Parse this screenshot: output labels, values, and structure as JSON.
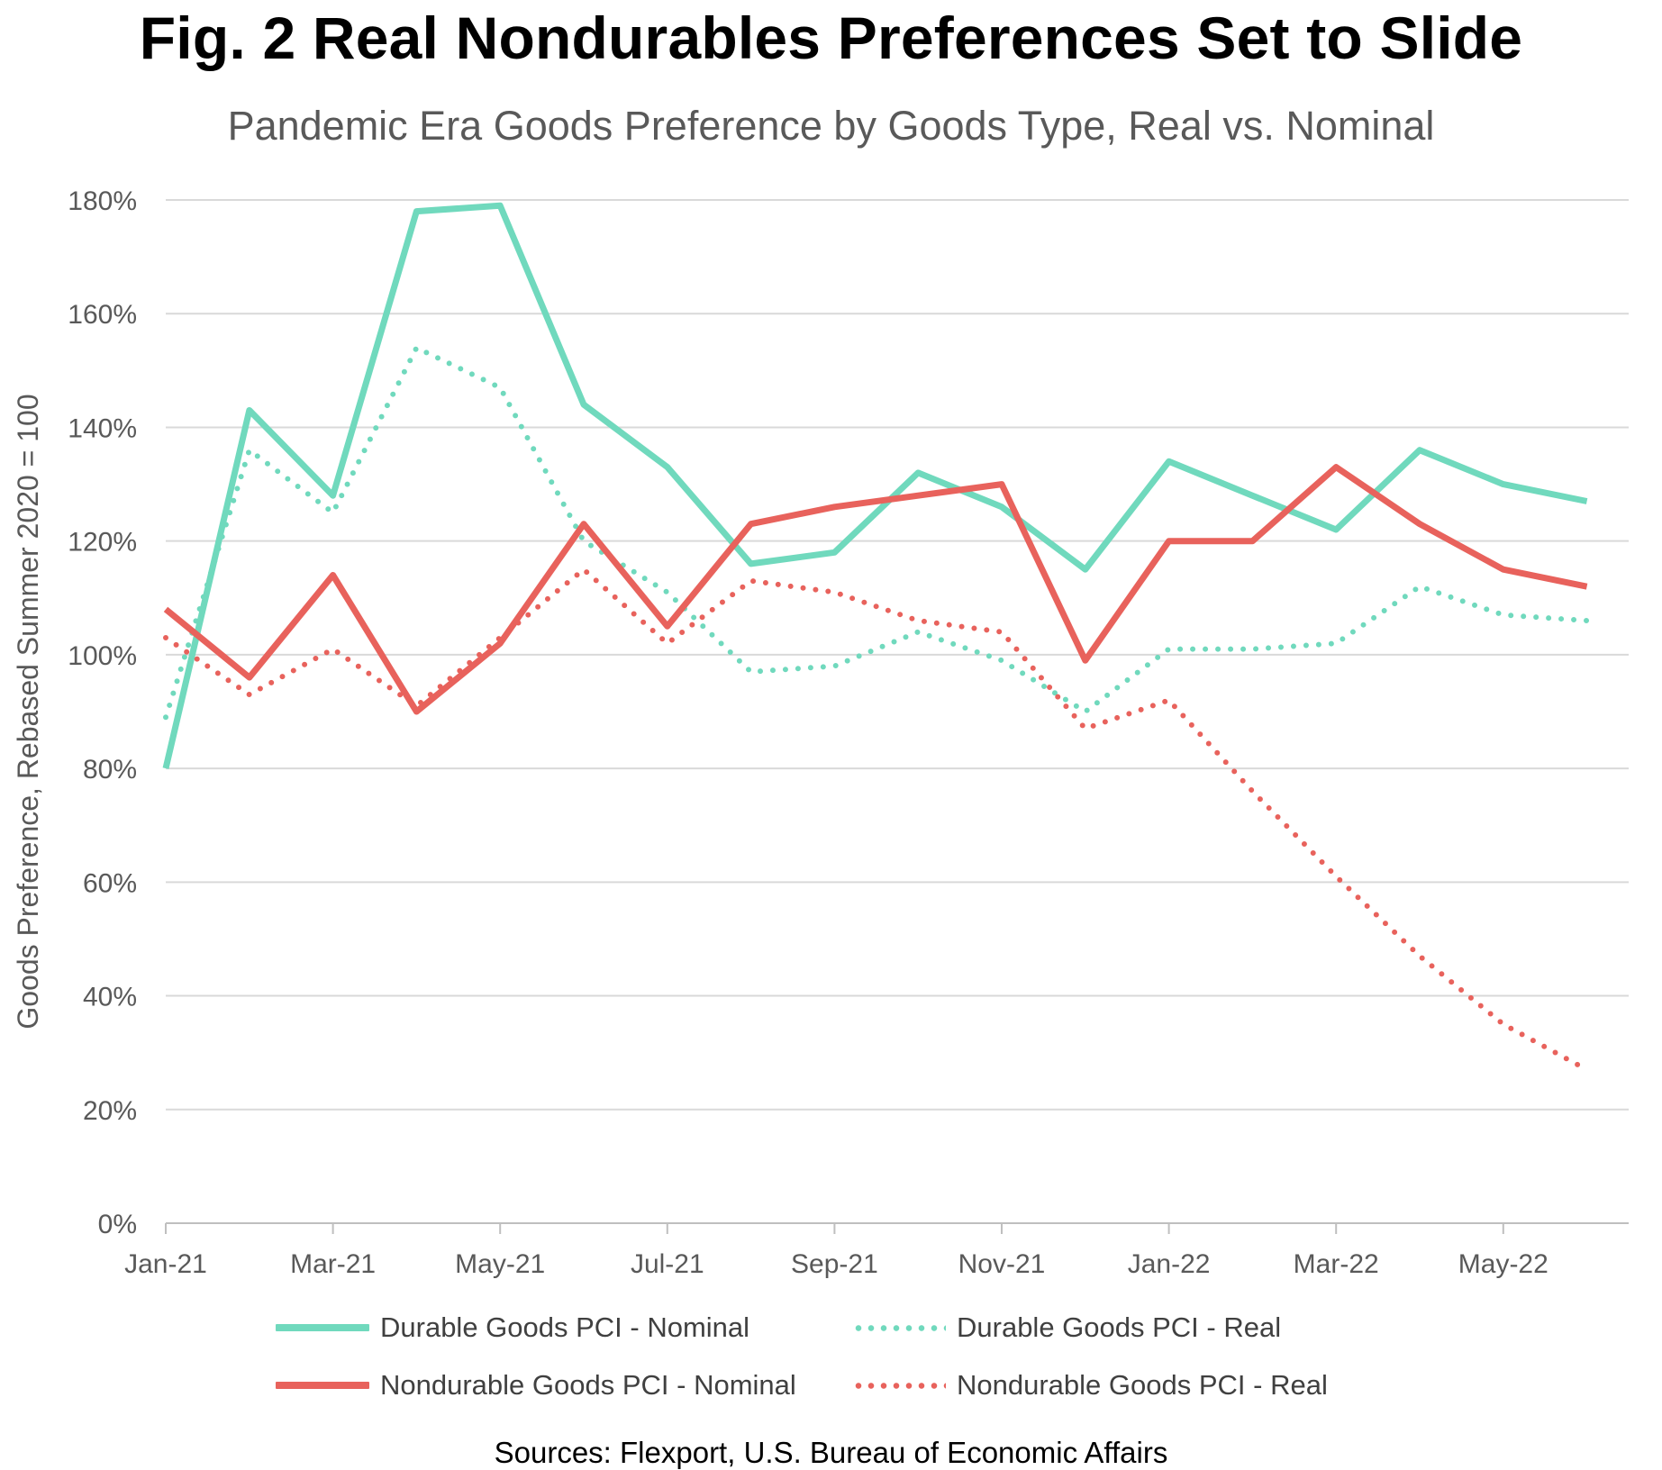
{
  "chart_data": {
    "type": "line",
    "title": "Fig. 2 Real Nondurables Preferences Set to Slide",
    "subtitle": "Pandemic Era Goods Preference by Goods Type, Real vs. Nominal",
    "ylabel": "Goods Preference, Rebased Summer 2020 = 100",
    "xlabel": "",
    "ylim": [
      0,
      180
    ],
    "y_ticks": [
      "0%",
      "20%",
      "40%",
      "60%",
      "80%",
      "100%",
      "120%",
      "140%",
      "160%",
      "180%"
    ],
    "y_tick_values": [
      0,
      20,
      40,
      60,
      80,
      100,
      120,
      140,
      160,
      180
    ],
    "categories": [
      "Jan-21",
      "Feb-21",
      "Mar-21",
      "Apr-21",
      "May-21",
      "Jun-21",
      "Jul-21",
      "Aug-21",
      "Sep-21",
      "Oct-21",
      "Nov-21",
      "Dec-21",
      "Jan-22",
      "Feb-22",
      "Mar-22",
      "Apr-22",
      "May-22",
      "Jun-22"
    ],
    "x_tick_labels": [
      "Jan-21",
      "Mar-21",
      "May-21",
      "Jul-21",
      "Sep-21",
      "Nov-21",
      "Jan-22",
      "Mar-22",
      "May-22"
    ],
    "grid": "horizontal",
    "legend_position": "bottom",
    "series": [
      {
        "name": "Durable Goods PCI - Nominal",
        "color": "#70D9BD",
        "style": "solid",
        "values": [
          80,
          143,
          128,
          178,
          179,
          144,
          133,
          116,
          118,
          132,
          126,
          115,
          134,
          128,
          122,
          136,
          130,
          127
        ]
      },
      {
        "name": "Durable Goods PCI - Real",
        "color": "#70D9BD",
        "style": "dotted",
        "values": [
          89,
          136,
          125,
          154,
          147,
          120,
          111,
          97,
          98,
          104,
          99,
          90,
          101,
          101,
          102,
          112,
          107,
          106
        ]
      },
      {
        "name": "Nondurable Goods PCI - Nominal",
        "color": "#E8625C",
        "style": "solid",
        "values": [
          108,
          96,
          114,
          90,
          102,
          123,
          105,
          123,
          126,
          128,
          130,
          99,
          120,
          120,
          133,
          123,
          115,
          112
        ]
      },
      {
        "name": "Nondurable Goods PCI - Real",
        "color": "#E8625C",
        "style": "dotted",
        "values": [
          103,
          93,
          101,
          91,
          103,
          115,
          102,
          113,
          111,
          106,
          104,
          87,
          92,
          76,
          61,
          47,
          35,
          27
        ]
      }
    ]
  },
  "sources": "Sources: Flexport, U.S. Bureau of Economic Affairs"
}
